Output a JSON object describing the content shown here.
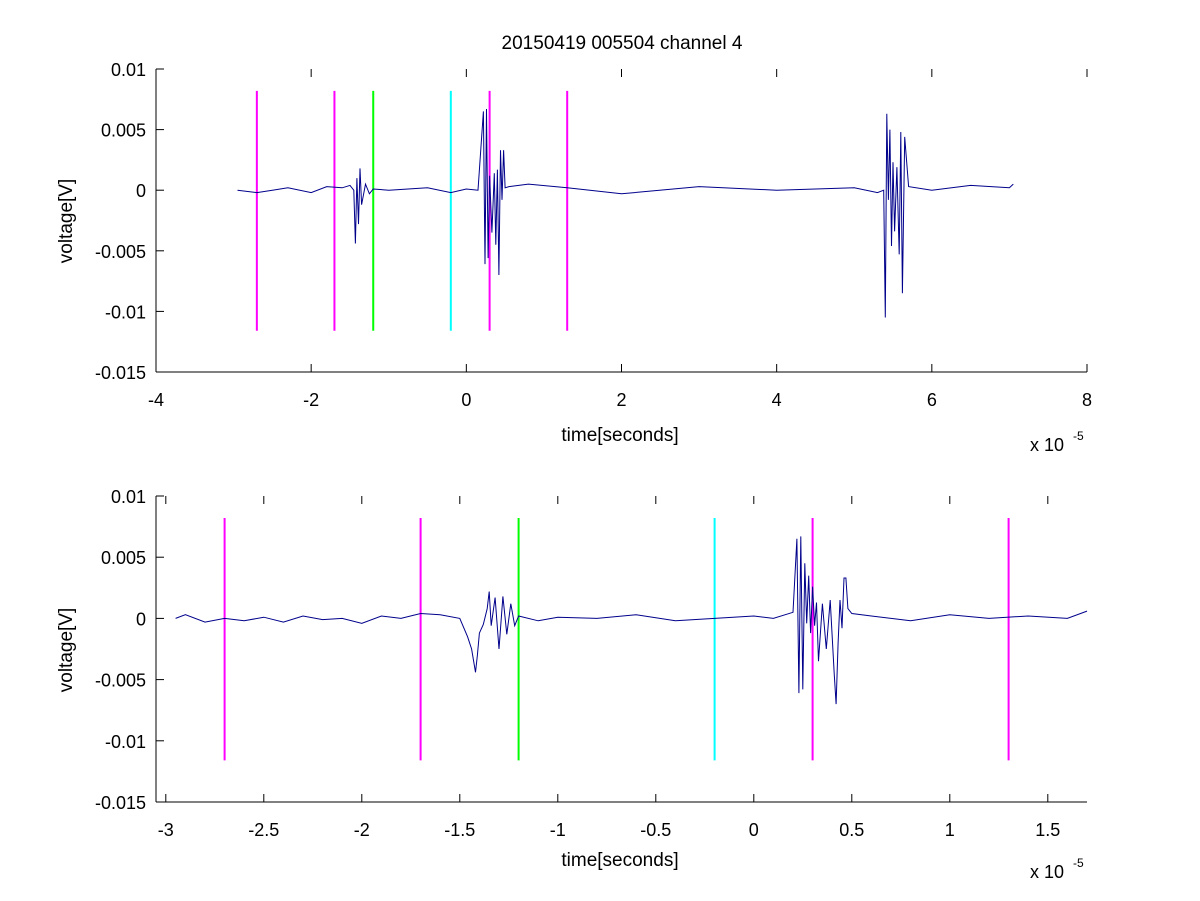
{
  "title": "20150419 005504 channel 4",
  "chart_data": [
    {
      "type": "line",
      "xlabel": "time[seconds]",
      "ylabel": "voltage[V]",
      "x_multiplier_base": "x 10",
      "x_multiplier_exp": "-5",
      "xlim": [
        -4,
        8
      ],
      "ylim": [
        -0.015,
        0.01
      ],
      "xticks": [
        -4,
        -2,
        0,
        2,
        4,
        6,
        8
      ],
      "xtick_labels": [
        "-4",
        "-2",
        "0",
        "2",
        "4",
        "6",
        "8"
      ],
      "yticks": [
        0.01,
        0.005,
        0,
        -0.005,
        -0.01,
        -0.015
      ],
      "ytick_labels": [
        "0.01",
        "0.005",
        "0",
        "-0.005",
        "-0.01",
        "-0.015"
      ],
      "markers": [
        {
          "x": -2.7,
          "color": "#ff00ff"
        },
        {
          "x": -1.7,
          "color": "#ff00ff"
        },
        {
          "x": -1.2,
          "color": "#00ff00"
        },
        {
          "x": -0.2,
          "color": "#00ffff"
        },
        {
          "x": 0.3,
          "color": "#ff00ff"
        },
        {
          "x": 1.3,
          "color": "#ff00ff"
        }
      ],
      "marker_y_range": [
        -0.0116,
        0.0082
      ],
      "series": [
        {
          "color": "#00008b",
          "x": [
            -2.95,
            -2.7,
            -2.5,
            -2.3,
            -2.0,
            -1.8,
            -1.6,
            -1.5,
            -1.45,
            -1.43,
            -1.41,
            -1.39,
            -1.37,
            -1.35,
            -1.3,
            -1.25,
            -1.2,
            -1.0,
            -0.5,
            -0.2,
            0.0,
            0.15,
            0.22,
            0.24,
            0.26,
            0.28,
            0.3,
            0.33,
            0.36,
            0.38,
            0.4,
            0.42,
            0.44,
            0.46,
            0.48,
            0.5,
            0.55,
            0.8,
            1.3,
            2.0,
            3.0,
            4.0,
            5.0,
            5.3,
            5.38,
            5.4,
            5.42,
            5.44,
            5.46,
            5.48,
            5.5,
            5.52,
            5.55,
            5.58,
            5.6,
            5.62,
            5.65,
            5.7,
            6.0,
            6.5,
            7.0,
            7.05
          ],
          "y": [
            0.0,
            -0.0002,
            0.0,
            0.0002,
            -0.0002,
            0.0003,
            0.0002,
            0.0004,
            0.0,
            -0.0044,
            0.001,
            -0.0028,
            0.0018,
            -0.0012,
            0.0005,
            -0.0003,
            0.0001,
            0.0,
            0.0002,
            -0.0002,
            0.0001,
            0.0,
            0.0065,
            -0.0061,
            0.0067,
            -0.0056,
            0.0012,
            -0.0035,
            0.0014,
            -0.0045,
            0.0017,
            -0.007,
            0.0033,
            -0.0008,
            0.0033,
            0.0002,
            0.0003,
            0.0005,
            0.0002,
            -0.0003,
            0.0003,
            0.0,
            0.0002,
            -0.0002,
            0.0,
            -0.0105,
            0.0063,
            -0.0008,
            0.005,
            -0.0046,
            0.0023,
            -0.0034,
            0.0019,
            -0.0053,
            0.0048,
            -0.0085,
            0.0044,
            0.0003,
            0.0,
            0.0004,
            0.0002,
            0.0005
          ]
        }
      ]
    },
    {
      "type": "line",
      "xlabel": "time[seconds]",
      "ylabel": "voltage[V]",
      "x_multiplier_base": "x 10",
      "x_multiplier_exp": "-5",
      "xlim": [
        -3.05,
        1.7
      ],
      "ylim": [
        -0.015,
        0.01
      ],
      "xticks": [
        -3,
        -2.5,
        -2,
        -1.5,
        -1,
        -0.5,
        0,
        0.5,
        1,
        1.5
      ],
      "xtick_labels": [
        "-3",
        "-2.5",
        "-2",
        "-1.5",
        "-1",
        "-0.5",
        "0",
        "0.5",
        "1",
        "1.5"
      ],
      "yticks": [
        0.01,
        0.005,
        0,
        -0.005,
        -0.01,
        -0.015
      ],
      "ytick_labels": [
        "0.01",
        "0.005",
        "0",
        "-0.005",
        "-0.01",
        "-0.015"
      ],
      "markers": [
        {
          "x": -2.7,
          "color": "#ff00ff"
        },
        {
          "x": -1.7,
          "color": "#ff00ff"
        },
        {
          "x": -1.2,
          "color": "#00ff00"
        },
        {
          "x": -0.2,
          "color": "#00ffff"
        },
        {
          "x": 0.3,
          "color": "#ff00ff"
        },
        {
          "x": 1.3,
          "color": "#ff00ff"
        }
      ],
      "marker_y_range": [
        -0.0116,
        0.0082
      ],
      "series": [
        {
          "color": "#00008b",
          "x": [
            -2.95,
            -2.9,
            -2.8,
            -2.7,
            -2.6,
            -2.5,
            -2.4,
            -2.3,
            -2.2,
            -2.1,
            -2.0,
            -1.9,
            -1.8,
            -1.7,
            -1.6,
            -1.5,
            -1.46,
            -1.44,
            -1.42,
            -1.41,
            -1.4,
            -1.38,
            -1.36,
            -1.35,
            -1.34,
            -1.32,
            -1.3,
            -1.28,
            -1.26,
            -1.24,
            -1.22,
            -1.2,
            -1.1,
            -1.0,
            -0.8,
            -0.6,
            -0.4,
            -0.2,
            0.0,
            0.1,
            0.2,
            0.22,
            0.23,
            0.24,
            0.25,
            0.26,
            0.27,
            0.28,
            0.29,
            0.3,
            0.31,
            0.32,
            0.33,
            0.35,
            0.37,
            0.39,
            0.41,
            0.42,
            0.43,
            0.44,
            0.45,
            0.46,
            0.47,
            0.48,
            0.5,
            0.6,
            0.8,
            1.0,
            1.2,
            1.4,
            1.6,
            1.7
          ],
          "y": [
            0.0,
            0.0003,
            -0.0003,
            0.0,
            -0.0002,
            0.0001,
            -0.0003,
            0.0002,
            -0.0001,
            0.0,
            -0.0004,
            0.0002,
            0.0,
            0.0004,
            0.0003,
            0.0,
            -0.0015,
            -0.0025,
            -0.0044,
            -0.003,
            -0.0012,
            -0.0005,
            0.0008,
            0.0022,
            -0.0006,
            0.0017,
            -0.0025,
            0.0018,
            -0.0013,
            0.0012,
            -0.0006,
            0.0002,
            -0.0002,
            0.0001,
            0.0,
            0.0003,
            -0.0002,
            0.0,
            0.0002,
            0.0,
            0.0005,
            0.0065,
            -0.0061,
            0.0067,
            -0.0058,
            0.0045,
            -0.0004,
            0.0035,
            -0.0012,
            0.0026,
            -0.0006,
            0.0013,
            -0.0035,
            0.0012,
            -0.0025,
            0.0015,
            -0.0045,
            -0.007,
            -0.002,
            0.0015,
            -0.0008,
            0.0033,
            0.0033,
            0.0008,
            0.0004,
            0.0002,
            -0.0002,
            0.0003,
            0.0,
            0.0002,
            0.0,
            0.0006
          ]
        }
      ]
    }
  ]
}
